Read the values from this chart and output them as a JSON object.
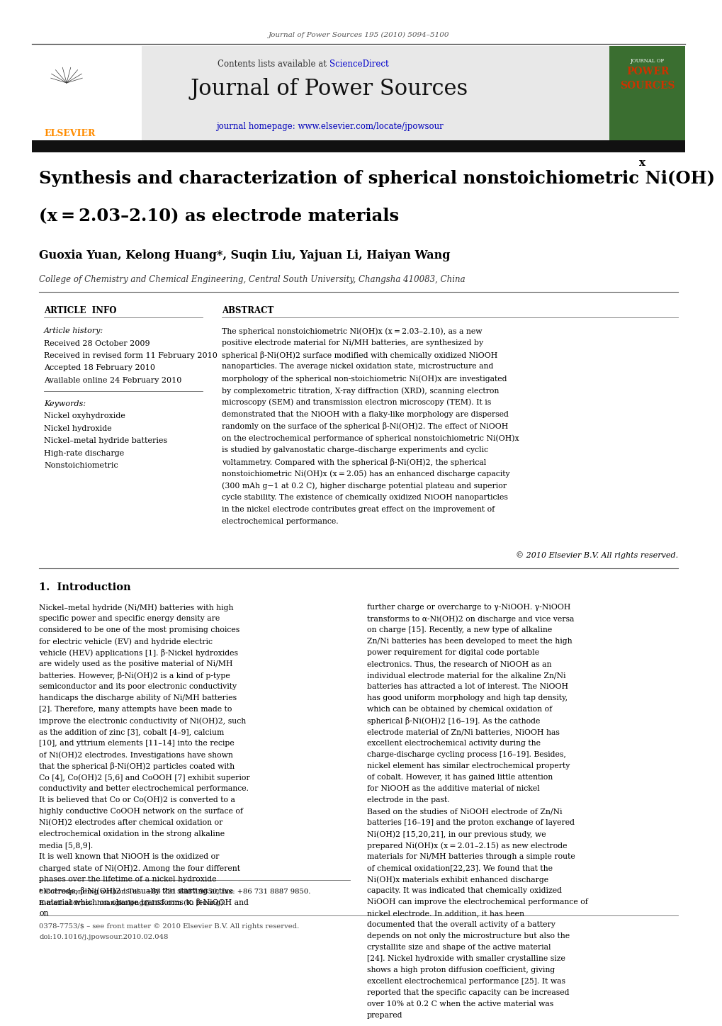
{
  "page_width": 9.92,
  "page_height": 13.23,
  "background_color": "#ffffff",
  "journal_citation": "Journal of Power Sources 195 (2010) 5094–5100",
  "header_bg_color": "#e8e8e8",
  "sciencedirect_color": "#0000cc",
  "journal_title": "Journal of Power Sources",
  "homepage_text": "journal homepage: www.elsevier.com/locate/jpowsour",
  "homepage_color": "#0000bb",
  "dark_bar_color": "#111111",
  "article_title_line1": "Synthesis and characterization of spherical nonstoichiometric Ni(OH)",
  "article_title_x": "x",
  "article_title_line2": "(x = 2.03–2.10) as electrode materials",
  "authors": "Guoxia Yuan, Kelong Huang*, Suqin Liu, Yajuan Li, Haiyan Wang",
  "affiliation": "College of Chemistry and Chemical Engineering, Central South University, Changsha 410083, China",
  "section_article_info": "ARTICLE  INFO",
  "section_abstract": "ABSTRACT",
  "article_history_label": "Article history:",
  "received_1": "Received 28 October 2009",
  "received_2": "Received in revised form 11 February 2010",
  "accepted": "Accepted 18 February 2010",
  "available": "Available online 24 February 2010",
  "keywords_label": "Keywords:",
  "keyword_1": "Nickel oxyhydroxide",
  "keyword_2": "Nickel hydroxide",
  "keyword_3": "Nickel–metal hydride batteries",
  "keyword_4": "High-rate discharge",
  "keyword_5": "Nonstoichiometric",
  "abstract_text": "The spherical nonstoichiometric Ni(OH)x (x = 2.03–2.10), as a new positive electrode material for Ni/MH batteries, are synthesized by spherical β-Ni(OH)2 surface modified with chemically oxidized NiOOH nanoparticles. The average nickel oxidation state, microstructure and morphology of the spherical non-stoichiometric Ni(OH)x are investigated by complexometric titration, X-ray diffraction (XRD), scanning electron microscopy (SEM) and transmission electron microscopy (TEM). It is demonstrated that the NiOOH with a flaky-like morphology are dispersed randomly on the surface of the spherical β-Ni(OH)2. The effect of NiOOH on the electrochemical performance of spherical nonstoichiometric Ni(OH)x is studied by galvanostatic charge–discharge experiments and cyclic voltammetry. Compared with the spherical β-Ni(OH)2, the spherical nonstoichiometric Ni(OH)x (x = 2.05) has an enhanced discharge capacity (300 mAh g−1 at 0.2 C), higher discharge potential plateau and superior cycle stability. The existence of chemically oxidized NiOOH nanoparticles in the nickel electrode contributes great effect on the improvement of electrochemical performance.",
  "copyright": "© 2010 Elsevier B.V. All rights reserved.",
  "intro_heading": "1.  Introduction",
  "intro_col1": "Nickel–metal hydride (Ni/MH) batteries with high specific power and specific energy density are considered to be one of the most promising choices for electric vehicle (EV) and hydride electric vehicle (HEV) applications [1]. β-Nickel hydroxides are widely used as the positive material of Ni/MH batteries. However, β-Ni(OH)2 is a kind of p-type semiconductor and its poor electronic conductivity handicaps the discharge ability of Ni/MH batteries [2]. Therefore, many attempts have been made to improve the electronic conductivity of Ni(OH)2, such as the addition of zinc [3], cobalt [4–9], calcium [10], and yttrium elements [11–14] into the recipe of Ni(OH)2 electrodes. Investigations have shown that the spherical β-Ni(OH)2 particles coated with Co [4], Co(OH)2 [5,6] and CoOOH [7] exhibit superior conductivity and better electrochemical performance. It is believed that Co or Co(OH)2 is converted to a highly conductive CoOOH network on the surface of Ni(OH)2 electrodes after chemical oxidation or electrochemical oxidation in the strong alkaline media [5,8,9].\n    It is well known that NiOOH is the oxidized or charged state of Ni(OH)2. Among the four different phases over the lifetime of a nickel hydroxide electrode, β-Ni(OH)2 is usually the starting active material which on charge transforms to β-NiOOH and on",
  "intro_col2": "further charge or overcharge to γ-NiOOH. γ-NiOOH transforms to α-Ni(OH)2 on discharge and vice versa on charge [15]. Recently, a new type of alkaline Zn/Ni batteries has been developed to meet the high power requirement for digital code portable electronics. Thus, the research of NiOOH as an individual electrode material for the alkaline Zn/Ni batteries has attracted a lot of interest. The NiOOH has good uniform morphology and high tap density, which can be obtained by chemical oxidation of spherical β-Ni(OH)2 [16–19]. As the cathode electrode material of Zn/Ni batteries, NiOOH has excellent electrochemical activity during the charge-discharge cycling process [16–19]. Besides, nickel element has similar electrochemical property of cobalt. However, it has gained little attention for NiOOH as the additive material of nickel electrode in the past.\n    Based on the studies of NiOOH electrode of Zn/Ni batteries [16–19] and the proton exchange of layered Ni(OH)2 [15,20,21], in our previous study, we prepared Ni(OH)x (x = 2.01–2.15) as new electrode materials for Ni/MH batteries through a simple route of chemical oxidation[22,23]. We found that the Ni(OH)x materials exhibit enhanced discharge capacity. It was indicated that chemically oxidized NiOOH can improve the electrochemical performance of nickel electrode. In addition, it has been documented that the overall activity of a battery depends on not only the microstructure but also the crystallite size and shape of the active material [24]. Nickel hydroxide with smaller crystalline size shows a high proton diffusion coefficient, giving excellent electrochemical performance [25]. It was reported that the specific capacity can be increased over 10% at 0.2 C when the active material was prepared",
  "footnote_star": "* Corresponding author. Tel.: +86 731 8887 9850; fax: +86 731 8887 9850.",
  "footnote_email": "E-mail address: huangkelong@163.com (K. Huang).",
  "bottom_line1": "0378-7753/$ – see front matter © 2010 Elsevier B.V. All rights reserved.",
  "bottom_line2": "doi:10.1016/j.jpowsour.2010.02.048"
}
